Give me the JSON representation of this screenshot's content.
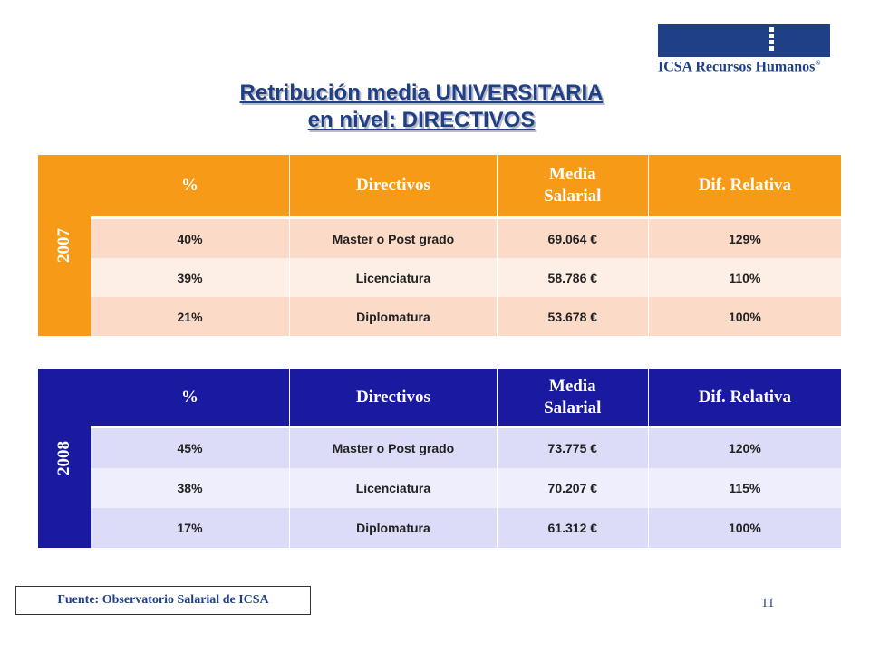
{
  "logo": {
    "text": "ICSA Recursos Humanos",
    "reg": "®",
    "color": "#1f3f87"
  },
  "title": {
    "line1": "Retribución media UNIVERSITARIA",
    "line2": "en nivel: DIRECTIVOS"
  },
  "tables": {
    "y2007": {
      "year": "2007",
      "color": "#f79a18",
      "headers": [
        "%",
        "Directivos",
        "Media Salarial",
        "Dif. Relativa"
      ],
      "rows": [
        [
          "40%",
          "Master o Post grado",
          "69.064 €",
          "129%"
        ],
        [
          "39%",
          "Licenciatura",
          "58.786 €",
          "110%"
        ],
        [
          "21%",
          "Diplomatura",
          "53.678 €",
          "100%"
        ]
      ]
    },
    "y2008": {
      "year": "2008",
      "color": "#1a1aa0",
      "headers": [
        "%",
        "Directivos",
        "Media Salarial",
        "Dif. Relativa"
      ],
      "rows": [
        [
          "45%",
          "Master o Post grado",
          "73.775 €",
          "120%"
        ],
        [
          "38%",
          "Licenciatura",
          "70.207 €",
          "115%"
        ],
        [
          "17%",
          "Diplomatura",
          "61.312 €",
          "100%"
        ]
      ]
    }
  },
  "source": "Fuente: Observatorio Salarial de ICSA",
  "page_number": "11"
}
